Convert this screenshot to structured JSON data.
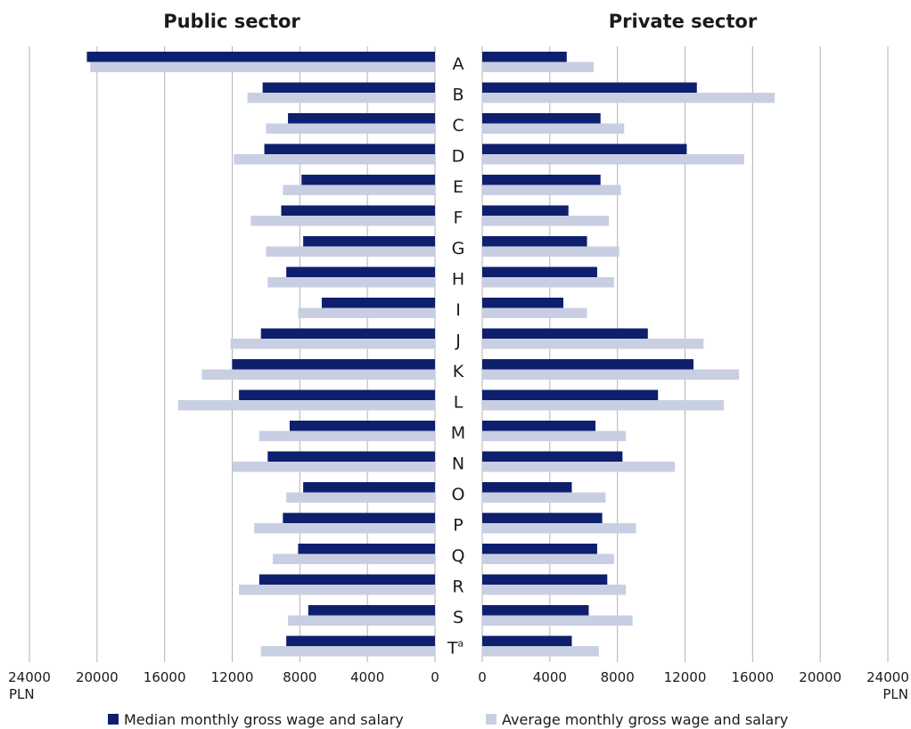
{
  "chart_data": {
    "type": "bar",
    "orientation": "horizontal-mirrored",
    "panels": [
      {
        "title": "Public sector",
        "key": "public"
      },
      {
        "title": "Private sector",
        "key": "private"
      }
    ],
    "categories": [
      "A",
      "B",
      "C",
      "D",
      "E",
      "F",
      "G",
      "H",
      "I",
      "J",
      "K",
      "L",
      "M",
      "N",
      "O",
      "P",
      "Q",
      "R",
      "S",
      "T"
    ],
    "category_superscripts": {
      "T": "a"
    },
    "series": [
      {
        "name": "Median monthly gross wage and salary",
        "color": "#0e1f6e",
        "public": [
          20600,
          10200,
          8700,
          10100,
          7900,
          9100,
          7800,
          8800,
          6700,
          10300,
          12000,
          11600,
          8600,
          9900,
          7800,
          9000,
          8100,
          10400,
          7500,
          8800
        ],
        "private": [
          5000,
          12700,
          7000,
          12100,
          7000,
          5100,
          6200,
          6800,
          4800,
          9800,
          12500,
          10400,
          6700,
          8300,
          5300,
          7100,
          6800,
          7400,
          6300,
          5300
        ]
      },
      {
        "name": "Average monthly gross wage and salary",
        "color": "#c9cfe3",
        "public": [
          20400,
          11100,
          10000,
          11900,
          9000,
          10900,
          10000,
          9900,
          8100,
          12100,
          13800,
          15200,
          10400,
          12000,
          8800,
          10700,
          9600,
          11600,
          8700,
          10300
        ],
        "private": [
          6600,
          17300,
          8400,
          15500,
          8200,
          7500,
          8100,
          7800,
          6200,
          13100,
          15200,
          14300,
          8500,
          11400,
          7300,
          9100,
          7800,
          8500,
          8900,
          6900
        ]
      }
    ],
    "xlim": [
      0,
      24000
    ],
    "ticks_public": [
      "24000",
      "20000",
      "16000",
      "12000",
      "8000",
      "4000",
      "0"
    ],
    "ticks_private": [
      "0",
      "4000",
      "8000",
      "12000",
      "16000",
      "20000",
      "24000"
    ],
    "unit_left": "PLN",
    "unit_right": "PLN",
    "grid": true,
    "legend_position": "bottom"
  }
}
